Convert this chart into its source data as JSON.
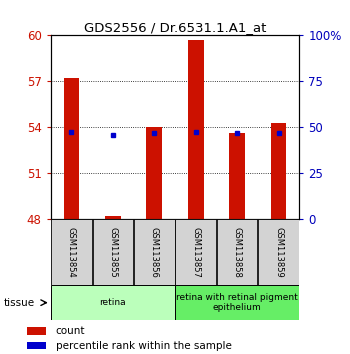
{
  "title": "GDS2556 / Dr.6531.1.A1_at",
  "samples": [
    "GSM113854",
    "GSM113855",
    "GSM113856",
    "GSM113857",
    "GSM113858",
    "GSM113859"
  ],
  "red_values": [
    57.25,
    48.2,
    54.0,
    59.7,
    53.65,
    54.3
  ],
  "blue_values": [
    53.72,
    53.48,
    53.63,
    53.72,
    53.62,
    53.62
  ],
  "ymin": 48,
  "ymax": 60,
  "yticks_left": [
    48,
    51,
    54,
    57,
    60
  ],
  "yticks_right_pct": [
    0,
    25,
    50,
    75,
    100
  ],
  "yticks_right_labels": [
    "0",
    "25",
    "50",
    "75",
    "100%"
  ],
  "tissue_groups": [
    {
      "label": "retina",
      "indices": [
        0,
        1,
        2
      ],
      "color": "#bbffbb"
    },
    {
      "label": "retina with retinal pigment\nepithelium",
      "indices": [
        3,
        4,
        5
      ],
      "color": "#66ee66"
    }
  ],
  "bar_color": "#cc1100",
  "dot_color": "#0000cc",
  "ylabel_left_color": "#cc1100",
  "ylabel_right_color": "#0000bb",
  "plot_bg_color": "#ffffff",
  "legend_count": "count",
  "legend_percentile": "percentile rank within the sample"
}
